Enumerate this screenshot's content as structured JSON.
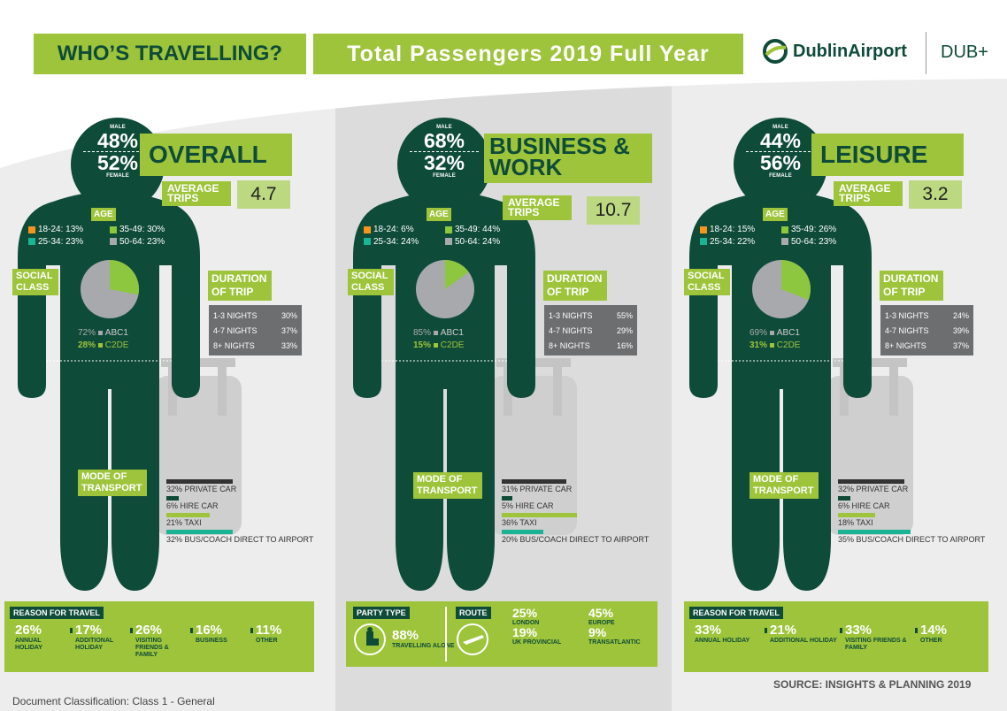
{
  "header": {
    "who": "WHO’S TRAVELLING?",
    "total": "Total Passengers 2019 Full Year",
    "logo": "DublinAirport",
    "dub": "DUB+"
  },
  "colors": {
    "dark": "#0f4b39",
    "green": "#9dc43a",
    "grey": "#c7c8ca",
    "age1": "#f7941d",
    "age2": "#1ab394",
    "age3": "#8dc63f",
    "age4": "#a7a9ac"
  },
  "panels": [
    {
      "id": "overall",
      "male": "48%",
      "female": "52%",
      "male_label": "MALE",
      "female_label": "FEMALE",
      "title": "OVERALL",
      "avg_label": "AVERAGE TRIPS",
      "avg": "4.7",
      "age_label": "AGE",
      "ages": [
        "18-24: 13%",
        "35-49: 30%",
        "25-34: 23%",
        "50-64: 23%"
      ],
      "social_label": "SOCIAL CLASS",
      "abc1": "72%",
      "c2de": "28%",
      "abc1_label": "ABC1",
      "c2de_label": "C2DE",
      "c2de_frac": 0.28,
      "duration_label": "DURATION OF TRIP",
      "durations": [
        [
          "1-3 NIGHTS",
          "30%"
        ],
        [
          "4-7 NIGHTS",
          "37%"
        ],
        [
          "8+ NIGHTS",
          "33%"
        ]
      ],
      "mode_label": "MODE OF TRANSPORT",
      "modes": [
        "32% PRIVATE CAR",
        "6% HIRE CAR",
        "21% TAXI",
        "32% BUS/COACH DIRECT TO AIRPORT"
      ],
      "mode_values": [
        32,
        6,
        21,
        32
      ],
      "reason_label": "REASON FOR TRAVEL",
      "reasons": [
        [
          "26%",
          "ANNUAL HOLIDAY"
        ],
        [
          "17%",
          "ADDITIONAL HOLIDAY"
        ],
        [
          "26%",
          "VISITING FRIENDS & FAMILY"
        ],
        [
          "16%",
          "BUSINESS"
        ],
        [
          "11%",
          "OTHER"
        ]
      ]
    },
    {
      "id": "business",
      "male": "68%",
      "female": "32%",
      "male_label": "MALE",
      "female_label": "FEMALE",
      "title": "BUSINESS & WORK",
      "avg_label": "AVERAGE TRIPS",
      "avg": "10.7",
      "age_label": "AGE",
      "ages": [
        "18-24: 6%",
        "35-49: 44%",
        "25-34: 24%",
        "50-64: 24%"
      ],
      "social_label": "SOCIAL CLASS",
      "abc1": "85%",
      "c2de": "15%",
      "abc1_label": "ABC1",
      "c2de_label": "C2DE",
      "c2de_frac": 0.15,
      "duration_label": "DURATION OF TRIP",
      "durations": [
        [
          "1-3 NIGHTS",
          "55%"
        ],
        [
          "4-7 NIGHTS",
          "29%"
        ],
        [
          "8+ NIGHTS",
          "16%"
        ]
      ],
      "mode_label": "MODE OF TRANSPORT",
      "modes": [
        "31% PRIVATE CAR",
        "5% HIRE CAR",
        "36% TAXI",
        "20% BUS/COACH DIRECT TO AIRPORT"
      ],
      "mode_values": [
        31,
        5,
        36,
        20
      ],
      "party_label": "PARTY TYPE",
      "party_pct": "88%",
      "party_text": "TRAVELLING ALONE",
      "route_label": "ROUTE",
      "routes": [
        [
          "25%",
          "LONDON"
        ],
        [
          "45%",
          "EUROPE"
        ],
        [
          "19%",
          "UK PROVINCIAL"
        ],
        [
          "9%",
          "TRANSATLANTIC"
        ]
      ]
    },
    {
      "id": "leisure",
      "male": "44%",
      "female": "56%",
      "male_label": "MALE",
      "female_label": "FEMALE",
      "title": "LEISURE",
      "avg_label": "AVERAGE TRIPS",
      "avg": "3.2",
      "age_label": "AGE",
      "ages": [
        "18-24: 15%",
        "35-49: 26%",
        "25-34: 22%",
        "50-64: 23%"
      ],
      "social_label": "SOCIAL CLASS",
      "abc1": "69%",
      "c2de": "31%",
      "abc1_label": "ABC1",
      "c2de_label": "C2DE",
      "c2de_frac": 0.31,
      "duration_label": "DURATION OF TRIP",
      "durations": [
        [
          "1-3 NIGHTS",
          "24%"
        ],
        [
          "4-7 NIGHTS",
          "39%"
        ],
        [
          "8+ NIGHTS",
          "37%"
        ]
      ],
      "mode_label": "MODE OF TRANSPORT",
      "modes": [
        "32% PRIVATE CAR",
        "6% HIRE CAR",
        "18% TAXI",
        "35% BUS/COACH DIRECT TO AIRPORT"
      ],
      "mode_values": [
        32,
        6,
        18,
        35
      ],
      "reason_label": "REASON FOR TRAVEL",
      "reasons": [
        [
          "33%",
          "ANNUAL HOLIDAY"
        ],
        [
          "21%",
          "ADDITIONAL HOLIDAY"
        ],
        [
          "33%",
          "VISITING FRIENDS & FAMILY"
        ],
        [
          "14%",
          "OTHER"
        ]
      ]
    }
  ],
  "footer": {
    "classification": "Document Classification:  Class 1 - General",
    "source": "SOURCE: INSIGHTS & PLANNING 2019"
  }
}
